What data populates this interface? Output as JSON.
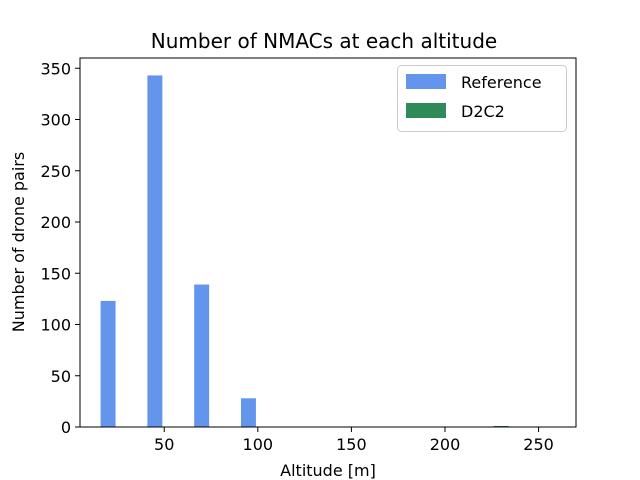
{
  "chart_data": {
    "type": "bar",
    "title": "Number of NMACs at each altitude",
    "xlabel": "Altitude [m]",
    "ylabel": "Number of drone pairs",
    "xlim": [
      5,
      270
    ],
    "ylim": [
      0,
      360
    ],
    "xticks": [
      50,
      100,
      150,
      200,
      250
    ],
    "yticks": [
      0,
      50,
      100,
      150,
      200,
      250,
      300,
      350
    ],
    "legend_position": "top-right",
    "bar_width": 8,
    "series": [
      {
        "name": "Reference",
        "color": "#6495ed",
        "points": [
          {
            "x": 20,
            "y": 123
          },
          {
            "x": 45,
            "y": 343
          },
          {
            "x": 70,
            "y": 139
          },
          {
            "x": 95,
            "y": 28
          }
        ]
      },
      {
        "name": "D2C2",
        "color": "#2e8b57",
        "points": [
          {
            "x": 230,
            "y": 1
          }
        ]
      }
    ]
  }
}
